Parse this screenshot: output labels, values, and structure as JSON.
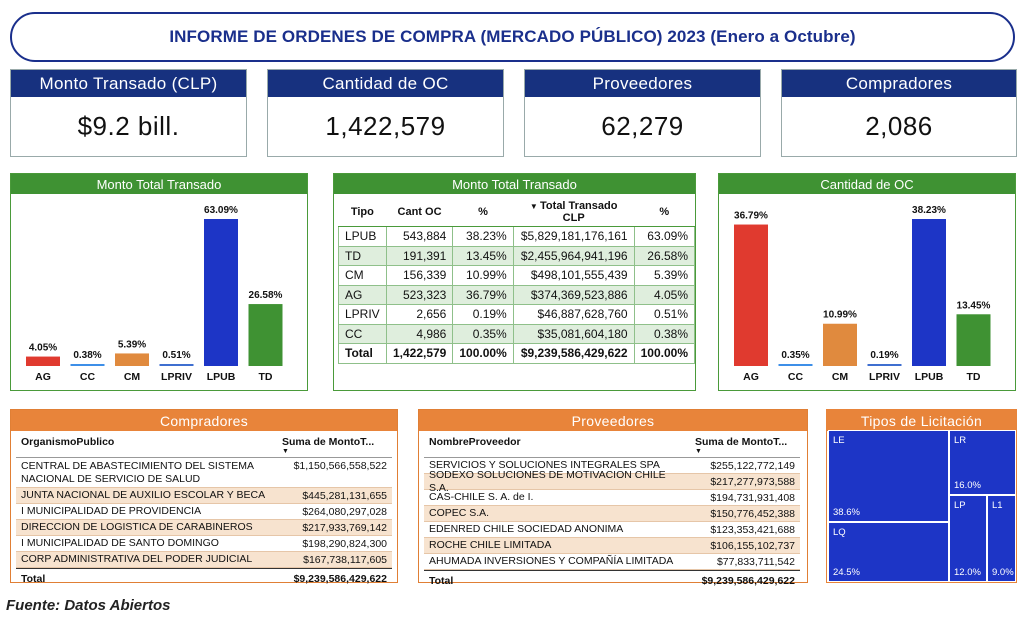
{
  "title": "INFORME DE ORDENES DE COMPRA (MERCADO PÚBLICO) 2023 (Enero a Octubre)",
  "kpis": [
    {
      "label": "Monto Transado (CLP)",
      "value": "$9.2 bill."
    },
    {
      "label": "Cantidad de OC",
      "value": "1,422,579"
    },
    {
      "label": "Proveedores",
      "value": "62,279"
    },
    {
      "label": "Compradores",
      "value": "2,086"
    }
  ],
  "colors": {
    "navy": "#17317f",
    "green": "#3f9233",
    "orange": "#e8843a",
    "red": "#e03a2f",
    "blue": "#1d35c6",
    "light_blue": "#3d8fe8"
  },
  "left_chart_title": "Monto Total Transado",
  "middle_table_title": "Monto Total Transado",
  "right_chart_title": "Cantidad de OC",
  "chart_data": [
    {
      "type": "bar",
      "title": "Monto Total Transado",
      "categories": [
        "AG",
        "CC",
        "CM",
        "LPRIV",
        "LPUB",
        "TD"
      ],
      "values": [
        4.05,
        0.38,
        5.39,
        0.51,
        63.09,
        26.58
      ],
      "labels": [
        "4.05%",
        "0.38%",
        "5.39%",
        "0.51%",
        "63.09%",
        "26.58%"
      ],
      "colors": [
        "#e03a2f",
        "#3d8fe8",
        "#e08a3e",
        "#3f6fd0",
        "#1d35c6",
        "#3f9233"
      ],
      "ylim": [
        0,
        63.09
      ]
    },
    {
      "type": "bar",
      "title": "Cantidad de OC",
      "categories": [
        "AG",
        "CC",
        "CM",
        "LPRIV",
        "LPUB",
        "TD"
      ],
      "values": [
        36.79,
        0.35,
        10.99,
        0.19,
        38.23,
        13.45
      ],
      "labels": [
        "36.79%",
        "0.35%",
        "10.99%",
        "0.19%",
        "38.23%",
        "13.45%"
      ],
      "colors": [
        "#e03a2f",
        "#3d8fe8",
        "#e08a3e",
        "#3f6fd0",
        "#1d35c6",
        "#3f9233"
      ],
      "ylim": [
        0,
        38.23
      ]
    }
  ],
  "middle_table": {
    "headers": [
      "Tipo",
      "Cant OC",
      "%",
      "Total Transado CLP",
      "%"
    ],
    "rows": [
      [
        "LPUB",
        "543,884",
        "38.23%",
        "$5,829,181,176,161",
        "63.09%"
      ],
      [
        "TD",
        "191,391",
        "13.45%",
        "$2,455,964,941,196",
        "26.58%"
      ],
      [
        "CM",
        "156,339",
        "10.99%",
        "$498,101,555,439",
        "5.39%"
      ],
      [
        "AG",
        "523,323",
        "36.79%",
        "$374,369,523,886",
        "4.05%"
      ],
      [
        "LPRIV",
        "2,656",
        "0.19%",
        "$46,887,628,760",
        "0.51%"
      ],
      [
        "CC",
        "4,986",
        "0.35%",
        "$35,081,604,180",
        "0.38%"
      ]
    ],
    "total": [
      "Total",
      "1,422,579",
      "100.00%",
      "$9,239,586,429,622",
      "100.00%"
    ]
  },
  "compradores": {
    "title": "Compradores",
    "col1": "OrganismoPublico",
    "col2": "Suma de MontoT...",
    "rows": [
      {
        "name": "CENTRAL DE ABASTECIMIENTO DEL SISTEMA NACIONAL DE SERVICIO DE SALUD",
        "value": "$1,150,566,558,522"
      },
      {
        "name": "JUNTA NACIONAL DE AUXILIO ESCOLAR Y BECA",
        "value": "$445,281,131,655"
      },
      {
        "name": "I MUNICIPALIDAD DE PROVIDENCIA",
        "value": "$264,080,297,028"
      },
      {
        "name": "DIRECCION DE LOGISTICA DE CARABINEROS",
        "value": "$217,933,769,142"
      },
      {
        "name": "I MUNICIPALIDAD DE SANTO DOMINGO",
        "value": "$198,290,824,300"
      },
      {
        "name": "CORP ADMINISTRATIVA DEL PODER JUDICIAL",
        "value": "$167,738,117,605"
      }
    ],
    "total_label": "Total",
    "total_value": "$9,239,586,429,622"
  },
  "proveedores": {
    "title": "Proveedores",
    "col1": "NombreProveedor",
    "col2": "Suma de MontoT...",
    "rows": [
      {
        "name": "SERVICIOS Y SOLUCIONES INTEGRALES SPA",
        "value": "$255,122,772,149"
      },
      {
        "name": "SODEXO SOLUCIONES DE MOTIVACION CHILE S.A.",
        "value": "$217,277,973,588"
      },
      {
        "name": "CAS-CHILE S. A. de I.",
        "value": "$194,731,931,408"
      },
      {
        "name": "COPEC S.A.",
        "value": "$150,776,452,388"
      },
      {
        "name": "EDENRED CHILE SOCIEDAD ANONIMA",
        "value": "$123,353,421,688"
      },
      {
        "name": "ROCHE CHILE LIMITADA",
        "value": "$106,155,102,737"
      },
      {
        "name": "AHUMADA INVERSIONES Y COMPAÑÍA LIMITADA",
        "value": "$77,833,711,542"
      }
    ],
    "total_label": "Total",
    "total_value": "$9,239,586,429,622"
  },
  "licitacion": {
    "title": "Tipos de Licitación",
    "cells": [
      {
        "label": "LE",
        "pct": "38.6%"
      },
      {
        "label": "LQ",
        "pct": "24.5%"
      },
      {
        "label": "LR",
        "pct": "16.0%"
      },
      {
        "label": "LP",
        "pct": "12.0%"
      },
      {
        "label": "L1",
        "pct": "9.0%"
      }
    ]
  },
  "footnote": "Fuente: Datos Abiertos"
}
